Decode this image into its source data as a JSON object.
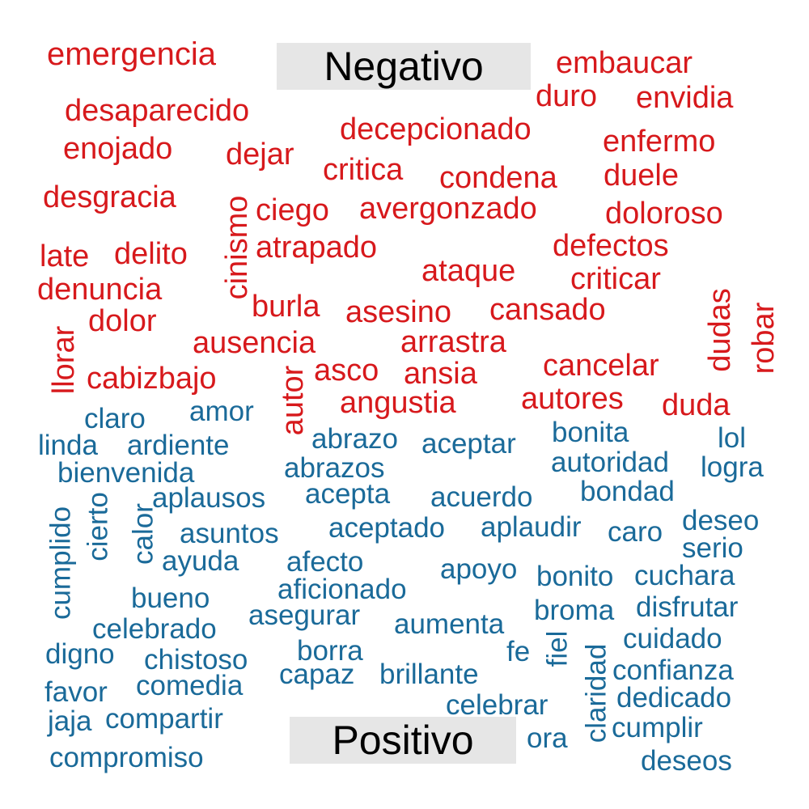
{
  "chart_data": {
    "type": "wordcloud",
    "groups": [
      {
        "name": "Negativo",
        "color": "#d7191c",
        "label_background": "#e6e6e6",
        "words": [
          {
            "text": "emergencia"
          },
          {
            "text": "embaucar"
          },
          {
            "text": "duro"
          },
          {
            "text": "envidia"
          },
          {
            "text": "desaparecido"
          },
          {
            "text": "decepcionado"
          },
          {
            "text": "enojado"
          },
          {
            "text": "dejar"
          },
          {
            "text": "enfermo"
          },
          {
            "text": "critica"
          },
          {
            "text": "condena"
          },
          {
            "text": "duele"
          },
          {
            "text": "desgracia"
          },
          {
            "text": "cinismo"
          },
          {
            "text": "ciego"
          },
          {
            "text": "avergonzado"
          },
          {
            "text": "doloroso"
          },
          {
            "text": "late"
          },
          {
            "text": "delito"
          },
          {
            "text": "atrapado"
          },
          {
            "text": "defectos"
          },
          {
            "text": "ataque"
          },
          {
            "text": "denuncia"
          },
          {
            "text": "criticar"
          },
          {
            "text": "dudas"
          },
          {
            "text": "robar"
          },
          {
            "text": "burla"
          },
          {
            "text": "asesino"
          },
          {
            "text": "cansado"
          },
          {
            "text": "dolor"
          },
          {
            "text": "llorar"
          },
          {
            "text": "ausencia"
          },
          {
            "text": "arrastra"
          },
          {
            "text": "autor"
          },
          {
            "text": "asco"
          },
          {
            "text": "ansia"
          },
          {
            "text": "cancelar"
          },
          {
            "text": "cabizbajo"
          },
          {
            "text": "autores"
          },
          {
            "text": "angustia"
          },
          {
            "text": "duda"
          }
        ]
      },
      {
        "name": "Positivo",
        "color": "#1a6a99",
        "label_background": "#e6e6e6",
        "words": [
          {
            "text": "claro"
          },
          {
            "text": "amor"
          },
          {
            "text": "bonita"
          },
          {
            "text": "abrazo"
          },
          {
            "text": "aceptar"
          },
          {
            "text": "lol"
          },
          {
            "text": "linda"
          },
          {
            "text": "ardiente"
          },
          {
            "text": "autoridad"
          },
          {
            "text": "bienvenida"
          },
          {
            "text": "abrazos"
          },
          {
            "text": "logra"
          },
          {
            "text": "bondad"
          },
          {
            "text": "aplausos"
          },
          {
            "text": "acepta"
          },
          {
            "text": "acuerdo"
          },
          {
            "text": "cumplido"
          },
          {
            "text": "cierto"
          },
          {
            "text": "calor"
          },
          {
            "text": "deseo"
          },
          {
            "text": "asuntos"
          },
          {
            "text": "aceptado"
          },
          {
            "text": "aplaudir"
          },
          {
            "text": "caro"
          },
          {
            "text": "serio"
          },
          {
            "text": "ayuda"
          },
          {
            "text": "afecto"
          },
          {
            "text": "apoyo"
          },
          {
            "text": "bonito"
          },
          {
            "text": "cuchara"
          },
          {
            "text": "bueno"
          },
          {
            "text": "aficionado"
          },
          {
            "text": "broma"
          },
          {
            "text": "disfrutar"
          },
          {
            "text": "celebrado"
          },
          {
            "text": "asegurar"
          },
          {
            "text": "aumenta"
          },
          {
            "text": "cuidado"
          },
          {
            "text": "digno"
          },
          {
            "text": "chistoso"
          },
          {
            "text": "borra"
          },
          {
            "text": "fe"
          },
          {
            "text": "fiel"
          },
          {
            "text": "claridad"
          },
          {
            "text": "confianza"
          },
          {
            "text": "capaz"
          },
          {
            "text": "brillante"
          },
          {
            "text": "favor"
          },
          {
            "text": "comedia"
          },
          {
            "text": "dedicado"
          },
          {
            "text": "celebrar"
          },
          {
            "text": "jaja"
          },
          {
            "text": "compartir"
          },
          {
            "text": "cumplir"
          },
          {
            "text": "ora"
          },
          {
            "text": "compromiso"
          },
          {
            "text": "deseos"
          }
        ]
      }
    ]
  }
}
